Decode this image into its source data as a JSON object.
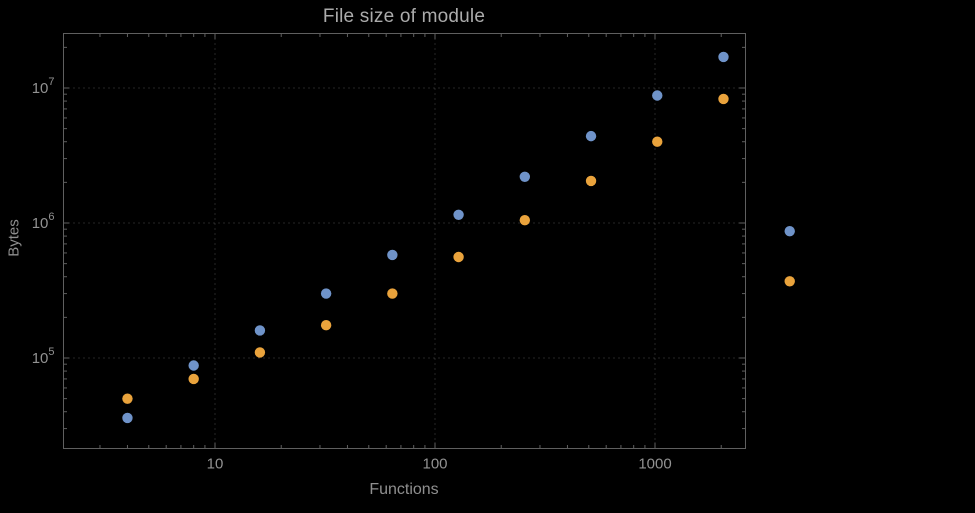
{
  "chart_data": {
    "type": "scatter",
    "title": "File size of module",
    "xlabel": "Functions",
    "ylabel": "Bytes",
    "x_scale": "log",
    "y_scale": "log",
    "grid": "dotted-major",
    "legend": "none",
    "xlim": [
      2,
      2600
    ],
    "ylim": [
      21500,
      25500000
    ],
    "x_ticks": [
      {
        "value": 10,
        "label": "10"
      },
      {
        "value": 100,
        "label": "100"
      },
      {
        "value": 1000,
        "label": "1000"
      }
    ],
    "y_ticks": [
      {
        "value": 100000,
        "base": "10",
        "exponent": "5"
      },
      {
        "value": 1000000,
        "base": "10",
        "exponent": "6"
      },
      {
        "value": 10000000,
        "base": "10",
        "exponent": "7"
      }
    ],
    "x": [
      4,
      8,
      16,
      32,
      64,
      128,
      256,
      512,
      1024,
      2048,
      4096
    ],
    "series": [
      {
        "name": "blue-series",
        "color": "#6f93c9",
        "values": [
          36000,
          88000,
          160000,
          300000,
          580000,
          1150000,
          2200000,
          4400000,
          8800000,
          17000000,
          870000
        ]
      },
      {
        "name": "orange-series",
        "color": "#eaa33c",
        "values": [
          50000,
          70000,
          110000,
          175000,
          300000,
          560000,
          1050000,
          2050000,
          4000000,
          8300000,
          370000
        ]
      }
    ],
    "colors": {
      "background": "#000000",
      "frame": "#5f5f5f",
      "gridline": "#4d4d4d",
      "tick_label": "#929292",
      "title": "#ababab"
    }
  }
}
